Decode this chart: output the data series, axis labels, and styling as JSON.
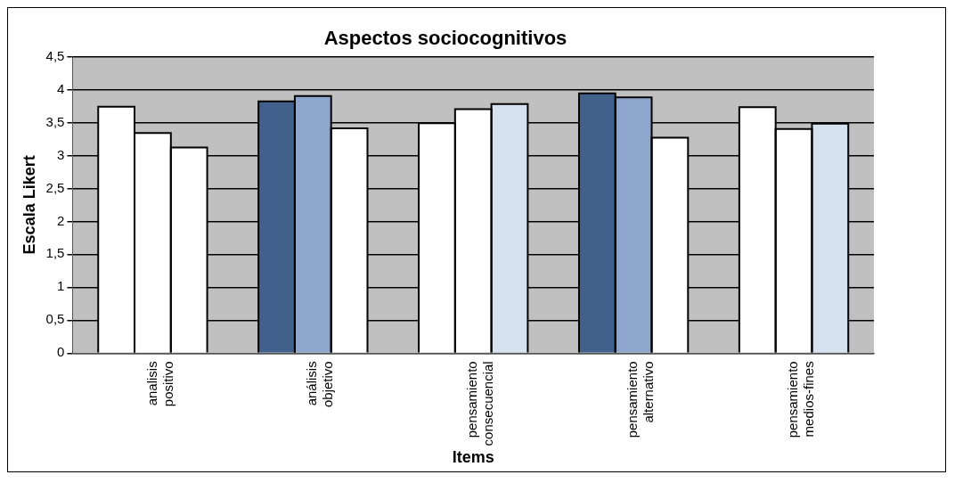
{
  "chart_data": {
    "type": "bar",
    "title": "Aspectos sociocognitivos",
    "xlabel": "Items",
    "ylabel": "Escala Likert",
    "categories": [
      "analisis positivo",
      "análisis objetivo",
      "pensamiento consecuencial",
      "pensamiento alternativo",
      "pensamiento medios-fines"
    ],
    "series": [
      {
        "colors": [
          "#ffffff",
          "#41618c",
          "#ffffff",
          "#41618c",
          "#ffffff"
        ],
        "values": [
          3.74,
          3.82,
          3.49,
          3.94,
          3.73
        ]
      },
      {
        "colors": [
          "#ffffff",
          "#8ea6cc",
          "#ffffff",
          "#8ea6cc",
          "#ffffff"
        ],
        "values": [
          3.34,
          3.9,
          3.7,
          3.88,
          3.4
        ]
      },
      {
        "colors": [
          "#ffffff",
          "#ffffff",
          "#d6e2ef",
          "#ffffff",
          "#d6e2ef"
        ],
        "values": [
          3.12,
          3.41,
          3.78,
          3.27,
          3.48
        ]
      }
    ],
    "ylim": [
      0,
      4.5
    ],
    "yticks": [
      0,
      {
        "value": 0.5,
        "label": "0,5"
      },
      1,
      {
        "value": 1.5,
        "label": "1,5"
      },
      2,
      {
        "value": 2.5,
        "label": "2,5"
      },
      3,
      {
        "value": 3.5,
        "label": "3,5"
      },
      4,
      {
        "value": 4.5,
        "label": "4,5"
      }
    ],
    "grid": "y",
    "legend": false
  }
}
